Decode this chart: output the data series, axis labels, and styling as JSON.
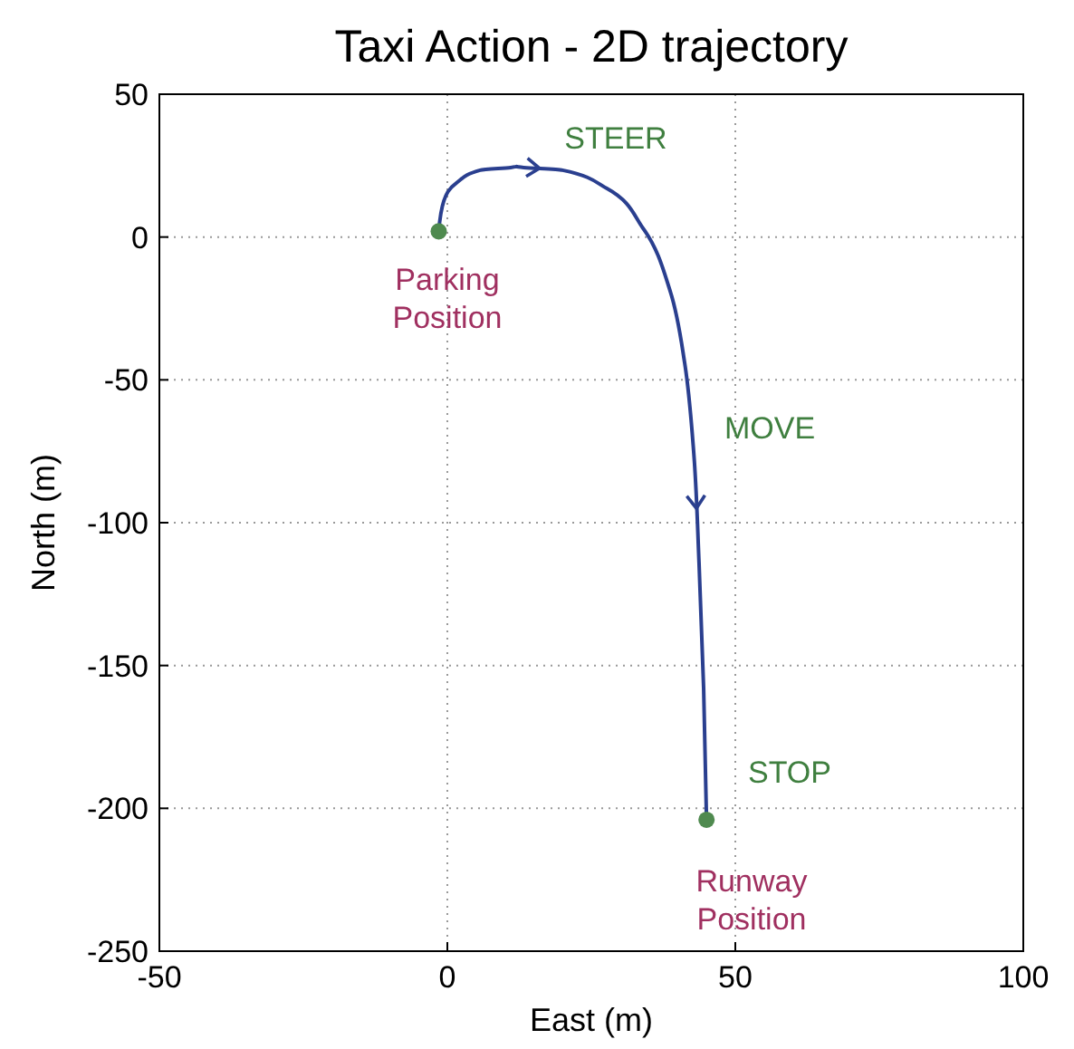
{
  "chart_data": {
    "type": "line",
    "title": "Taxi Action - 2D trajectory",
    "xlabel": "East (m)",
    "ylabel": "North (m)",
    "xlim": [
      -50,
      100
    ],
    "xticks": [
      -50,
      0,
      50,
      100
    ],
    "ylim": [
      -250,
      50
    ],
    "yticks": [
      -250,
      -200,
      -150,
      -100,
      -50,
      0,
      50
    ],
    "grid": true,
    "series": [
      {
        "color": "#2a3f8f",
        "x": [
          -1.5,
          -0.6,
          1.6,
          5.7,
          12,
          20,
          27.7,
          34,
          38.7,
          41.2,
          42.8,
          43.7,
          44.5,
          45
        ],
        "values": [
          2,
          12.7,
          19,
          23.4,
          24.7,
          23.4,
          17,
          3,
          -19,
          -44,
          -76,
          -114,
          -158,
          -204
        ]
      },
      {
        "type": "scatter",
        "color": "#4f8a4f",
        "marker": "circle",
        "x": [
          -1.5,
          45
        ],
        "values": [
          2,
          -204
        ]
      }
    ],
    "annotations": [
      "STEER",
      "Parking\nPosition",
      "MOVE",
      "STOP",
      "Runway\nPosition"
    ]
  }
}
